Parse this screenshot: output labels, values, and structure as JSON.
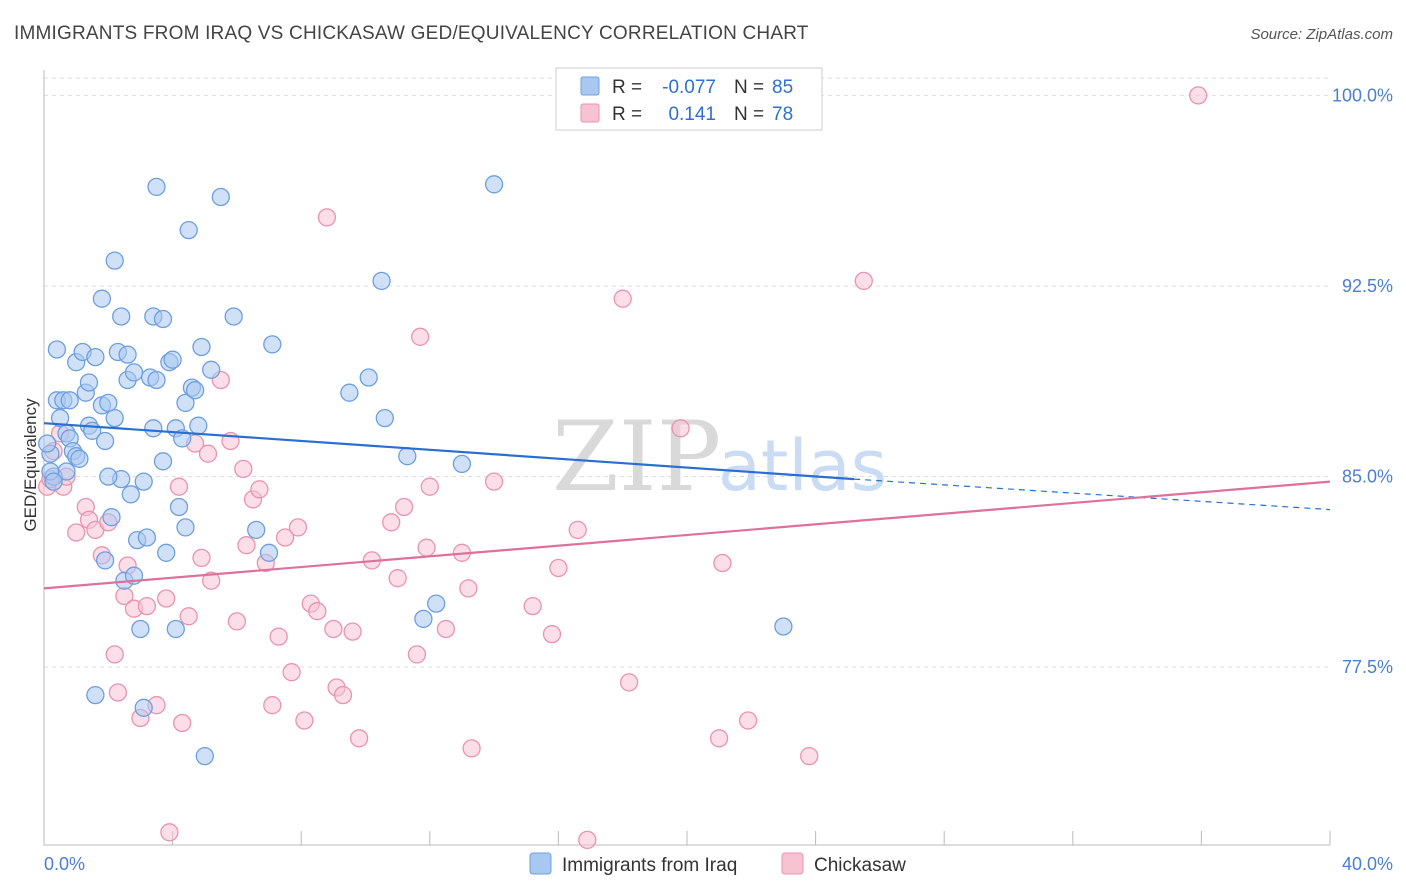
{
  "header": {
    "title": "IMMIGRANTS FROM IRAQ VS CHICKASAW GED/EQUIVALENCY CORRELATION CHART",
    "source": "Source: ZipAtlas.com"
  },
  "watermark": {
    "zip": "ZIP",
    "atlas": "atlas"
  },
  "legend": {
    "rows": [
      {
        "r_label": "R =",
        "r_value": "-0.077",
        "n_label": "N =",
        "n_value": "85"
      },
      {
        "r_label": "R =",
        "r_value": "0.141",
        "n_label": "N =",
        "n_value": "78"
      }
    ]
  },
  "bottom_legend": {
    "series1": "Immigrants from Iraq",
    "series2": "Chickasaw"
  },
  "colors": {
    "iraq_fill": "#a9c8f0",
    "iraq_stroke": "#6d9fe0",
    "iraq_line": "#2a6fd0",
    "chick_fill": "#f7c3d3",
    "chick_stroke": "#ea93af",
    "chick_line": "#e0709a",
    "grid": "#dddddd",
    "tick_text": "#4a7fd1"
  },
  "chart_data": {
    "type": "scatter",
    "title": "IMMIGRANTS FROM IRAQ VS CHICKASAW GED/EQUIVALENCY CORRELATION CHART",
    "xlabel": "",
    "ylabel": "GED/Equivalency",
    "xlim": [
      0,
      40
    ],
    "ylim": [
      70.5,
      101.0
    ],
    "x_tick_labels": [
      "0.0%",
      "40.0%"
    ],
    "y_ticks": [
      77.5,
      85.0,
      92.5,
      100.0
    ],
    "y_tick_labels": [
      "77.5%",
      "85.0%",
      "92.5%",
      "100.0%"
    ],
    "grid": true,
    "legend_position": "top-center",
    "series": [
      {
        "name": "Immigrants from Iraq",
        "r": -0.077,
        "n": 85,
        "trend": {
          "x": [
            0,
            25.2
          ],
          "y": [
            87.1,
            84.9
          ],
          "dashed_to": [
            40,
            83.7
          ]
        },
        "points": [
          [
            0.2,
            85.9
          ],
          [
            0.3,
            85.0
          ],
          [
            0.4,
            88.0
          ],
          [
            0.4,
            90.0
          ],
          [
            0.5,
            87.3
          ],
          [
            0.6,
            88.0
          ],
          [
            0.7,
            86.7
          ],
          [
            0.7,
            85.2
          ],
          [
            0.8,
            88.0
          ],
          [
            0.8,
            86.5
          ],
          [
            0.9,
            86.0
          ],
          [
            1.0,
            85.8
          ],
          [
            1.0,
            89.5
          ],
          [
            1.1,
            85.7
          ],
          [
            1.2,
            89.9
          ],
          [
            1.3,
            88.3
          ],
          [
            1.4,
            88.7
          ],
          [
            1.4,
            87.0
          ],
          [
            1.5,
            86.8
          ],
          [
            1.6,
            89.7
          ],
          [
            1.6,
            76.4
          ],
          [
            1.8,
            92.0
          ],
          [
            1.8,
            87.8
          ],
          [
            1.9,
            86.4
          ],
          [
            1.9,
            81.7
          ],
          [
            2.0,
            87.9
          ],
          [
            2.1,
            83.4
          ],
          [
            2.2,
            87.3
          ],
          [
            2.2,
            93.5
          ],
          [
            2.3,
            89.9
          ],
          [
            2.4,
            91.3
          ],
          [
            2.4,
            84.9
          ],
          [
            2.5,
            80.9
          ],
          [
            2.6,
            89.8
          ],
          [
            2.6,
            88.8
          ],
          [
            2.7,
            84.3
          ],
          [
            2.8,
            89.1
          ],
          [
            2.8,
            81.1
          ],
          [
            2.9,
            82.5
          ],
          [
            3.1,
            84.8
          ],
          [
            3.1,
            75.9
          ],
          [
            3.2,
            82.6
          ],
          [
            3.3,
            88.9
          ],
          [
            3.4,
            86.9
          ],
          [
            3.4,
            91.3
          ],
          [
            3.5,
            96.4
          ],
          [
            3.5,
            88.8
          ],
          [
            3.7,
            85.6
          ],
          [
            3.7,
            91.2
          ],
          [
            3.8,
            82.0
          ],
          [
            3.9,
            89.5
          ],
          [
            4.0,
            89.6
          ],
          [
            4.1,
            86.9
          ],
          [
            4.1,
            79.0
          ],
          [
            4.2,
            83.8
          ],
          [
            4.3,
            86.5
          ],
          [
            4.4,
            83.0
          ],
          [
            4.4,
            87.9
          ],
          [
            4.5,
            94.7
          ],
          [
            4.6,
            88.5
          ],
          [
            4.7,
            88.4
          ],
          [
            4.8,
            87.0
          ],
          [
            4.9,
            90.1
          ],
          [
            5.0,
            74.0
          ],
          [
            5.2,
            89.2
          ],
          [
            5.5,
            96.0
          ],
          [
            5.9,
            91.3
          ],
          [
            6.6,
            82.9
          ],
          [
            7.0,
            82.0
          ],
          [
            7.1,
            90.2
          ],
          [
            9.5,
            88.3
          ],
          [
            10.1,
            88.9
          ],
          [
            10.5,
            92.7
          ],
          [
            10.6,
            87.3
          ],
          [
            11.3,
            85.8
          ],
          [
            11.8,
            79.4
          ],
          [
            12.2,
            80.0
          ],
          [
            13.0,
            85.5
          ],
          [
            14.0,
            96.5
          ],
          [
            23.0,
            79.1
          ],
          [
            0.1,
            86.3
          ],
          [
            0.2,
            85.2
          ],
          [
            0.3,
            84.8
          ],
          [
            2.0,
            85.0
          ],
          [
            3.0,
            79.0
          ]
        ]
      },
      {
        "name": "Chickasaw",
        "r": 0.141,
        "n": 78,
        "trend": {
          "x": [
            0,
            40
          ],
          "y": [
            80.6,
            84.8
          ]
        },
        "points": [
          [
            0.1,
            84.6
          ],
          [
            0.3,
            86.0
          ],
          [
            0.5,
            86.7
          ],
          [
            0.6,
            84.6
          ],
          [
            0.7,
            85.0
          ],
          [
            1.0,
            82.8
          ],
          [
            1.3,
            83.8
          ],
          [
            1.4,
            83.3
          ],
          [
            1.6,
            82.9
          ],
          [
            1.8,
            81.9
          ],
          [
            2.0,
            83.2
          ],
          [
            2.2,
            78.0
          ],
          [
            2.3,
            76.5
          ],
          [
            2.5,
            80.3
          ],
          [
            2.6,
            81.5
          ],
          [
            2.8,
            79.8
          ],
          [
            3.0,
            75.5
          ],
          [
            3.2,
            79.9
          ],
          [
            3.5,
            76.0
          ],
          [
            3.8,
            80.2
          ],
          [
            3.9,
            71.0
          ],
          [
            4.2,
            84.6
          ],
          [
            4.3,
            75.3
          ],
          [
            4.5,
            79.5
          ],
          [
            4.7,
            86.3
          ],
          [
            4.9,
            81.8
          ],
          [
            5.1,
            85.9
          ],
          [
            5.2,
            80.9
          ],
          [
            5.5,
            88.8
          ],
          [
            5.8,
            86.4
          ],
          [
            6.0,
            79.3
          ],
          [
            6.2,
            85.3
          ],
          [
            6.3,
            82.3
          ],
          [
            6.5,
            84.1
          ],
          [
            6.7,
            84.5
          ],
          [
            6.9,
            81.6
          ],
          [
            7.1,
            76.0
          ],
          [
            7.3,
            78.7
          ],
          [
            7.5,
            82.6
          ],
          [
            7.7,
            77.3
          ],
          [
            7.9,
            83.0
          ],
          [
            8.1,
            75.4
          ],
          [
            8.3,
            80.0
          ],
          [
            8.5,
            79.7
          ],
          [
            8.8,
            95.2
          ],
          [
            9.0,
            79.0
          ],
          [
            9.1,
            76.7
          ],
          [
            9.3,
            76.4
          ],
          [
            9.6,
            78.9
          ],
          [
            9.8,
            74.7
          ],
          [
            10.2,
            81.7
          ],
          [
            10.8,
            83.2
          ],
          [
            11.0,
            81.0
          ],
          [
            11.2,
            83.8
          ],
          [
            11.6,
            78.0
          ],
          [
            11.7,
            90.5
          ],
          [
            11.9,
            82.2
          ],
          [
            12.0,
            84.6
          ],
          [
            12.5,
            79.0
          ],
          [
            13.0,
            82.0
          ],
          [
            13.2,
            80.6
          ],
          [
            13.3,
            74.3
          ],
          [
            14.0,
            84.8
          ],
          [
            15.2,
            79.9
          ],
          [
            15.8,
            78.8
          ],
          [
            16.0,
            81.4
          ],
          [
            16.6,
            82.9
          ],
          [
            16.9,
            70.7
          ],
          [
            18.0,
            92.0
          ],
          [
            18.2,
            76.9
          ],
          [
            19.8,
            86.9
          ],
          [
            21.0,
            74.7
          ],
          [
            21.1,
            81.6
          ],
          [
            21.9,
            75.4
          ],
          [
            23.8,
            74.0
          ],
          [
            25.5,
            92.7
          ],
          [
            35.9,
            100.0
          ],
          [
            0.2,
            84.9
          ]
        ]
      }
    ]
  }
}
